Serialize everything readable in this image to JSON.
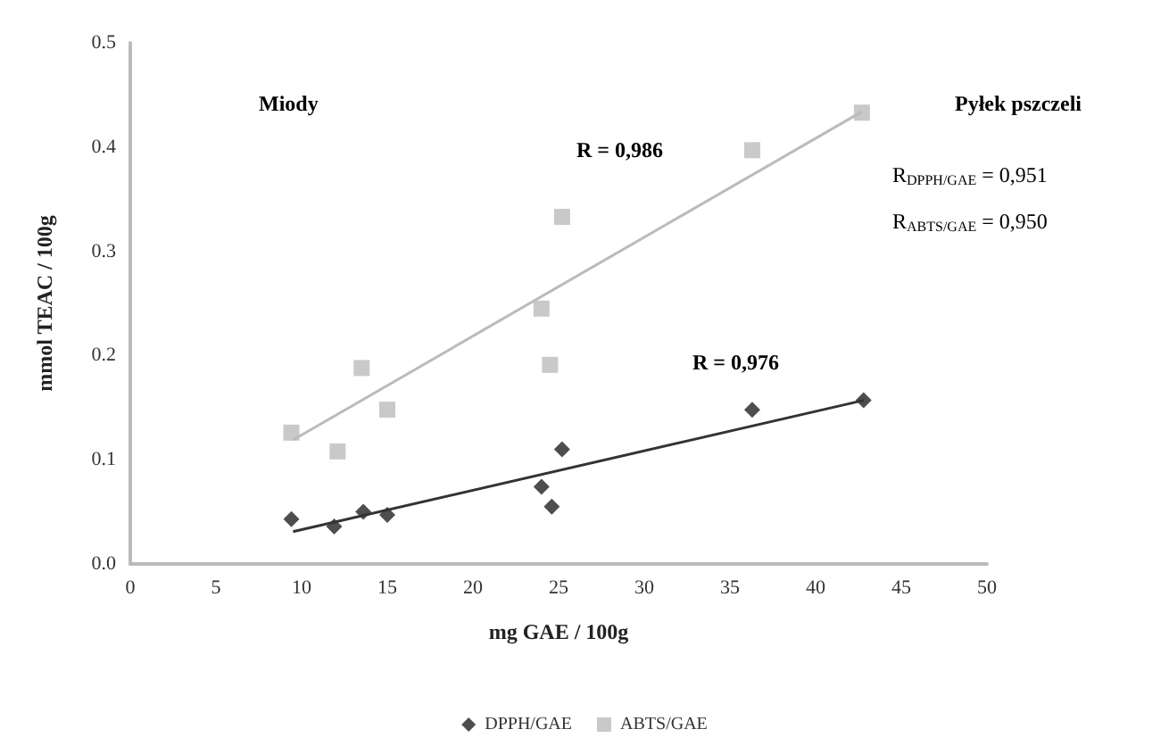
{
  "chart_data": {
    "type": "scatter",
    "xlabel": "mg GAE / 100g",
    "ylabel": "mmol TEAC / 100g",
    "xlim": [
      0,
      50
    ],
    "xticks": [
      0,
      5,
      10,
      15,
      20,
      25,
      30,
      35,
      40,
      45,
      50
    ],
    "ylim": [
      0,
      0.5
    ],
    "yticks": [
      {
        "value": 0,
        "label": "0.0"
      },
      0.1,
      0.2,
      0.3,
      0.4,
      0.5
    ],
    "grid": false,
    "legend": "bottom",
    "annotations": [
      "Miody",
      "R = 0,986",
      "Pyłek pszczeli",
      "R$_{DPPH/GAE}$ = 0,951",
      "R$_{ABTS/GAE}$ = 0,950",
      "R = 0,976"
    ],
    "series": [
      {
        "name": "DPPH/GAE",
        "marker": "diamond",
        "color": "#222222",
        "x": [
          9.4,
          11.9,
          13.6,
          15.0,
          24.0,
          24.6,
          25.2,
          36.3,
          42.8
        ],
        "values": [
          0.043,
          0.036,
          0.05,
          0.047,
          0.074,
          0.055,
          0.11,
          0.148,
          0.157
        ]
      },
      {
        "name": "ABTS/GAE",
        "marker": "square",
        "color": "#bbbbbb",
        "x": [
          9.4,
          12.1,
          13.5,
          15.0,
          24.0,
          24.5,
          25.2,
          36.3,
          42.7
        ],
        "values": [
          0.126,
          0.108,
          0.188,
          0.148,
          0.245,
          0.191,
          0.333,
          0.397,
          0.433
        ]
      },
      {
        "type": "line",
        "marker": "none",
        "color": "#bbbbbb",
        "x": [
          9.5,
          42.7
        ],
        "values": [
          0.119,
          0.434
        ]
      },
      {
        "type": "line",
        "marker": "none",
        "color": "#333333",
        "x": [
          9.5,
          42.8
        ],
        "values": [
          0.031,
          0.157
        ]
      }
    ]
  }
}
